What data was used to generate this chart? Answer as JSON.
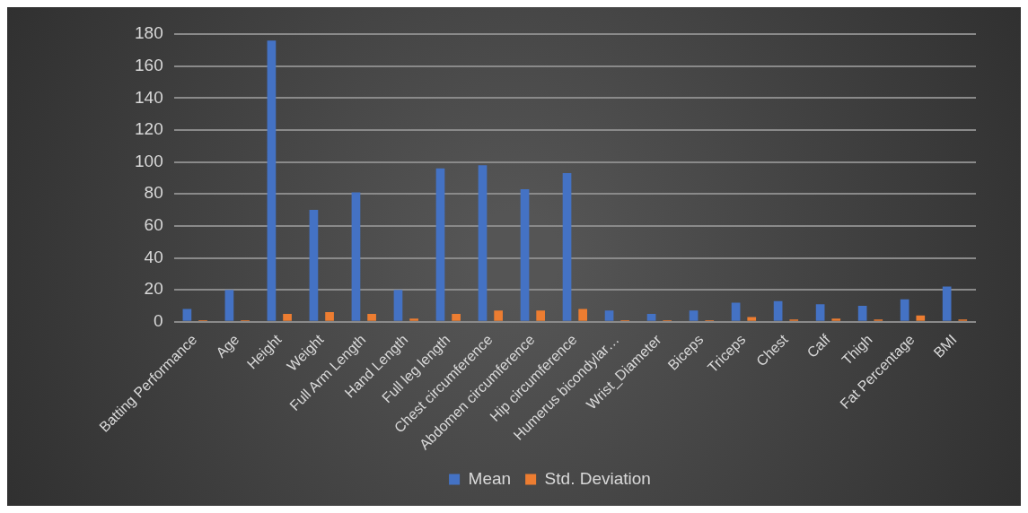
{
  "chart_data": {
    "type": "bar",
    "categories": [
      "Batting Performance",
      "Age",
      "Height",
      "Weight",
      "Full Arm Length",
      "Hand Length",
      "Full leg length",
      "Chest circumference",
      "Abdomen circumference",
      "Hip circumference",
      "Humerus bicondylar…",
      "Wrist_Diameter",
      "Biceps",
      "Triceps",
      "Chest",
      "Calf",
      "Thigh",
      "Fat Percentage",
      "BMI"
    ],
    "series": [
      {
        "name": "Mean",
        "color": "#4472c4",
        "values": [
          8,
          20,
          176,
          70,
          81,
          20,
          96,
          98,
          83,
          93,
          7,
          5,
          7,
          12,
          13,
          11,
          10,
          14,
          22
        ]
      },
      {
        "name": "Std. Deviation",
        "color": "#ed7d31",
        "values": [
          1,
          1,
          5,
          6,
          5,
          2,
          5,
          7,
          7,
          8,
          1,
          1,
          1,
          3,
          1.5,
          2,
          1.5,
          4,
          1.5
        ]
      }
    ],
    "ylim": [
      0,
      180
    ],
    "yticks": [
      0,
      20,
      40,
      60,
      80,
      100,
      120,
      140,
      160,
      180
    ],
    "grid": "y",
    "legend": "bottom"
  }
}
